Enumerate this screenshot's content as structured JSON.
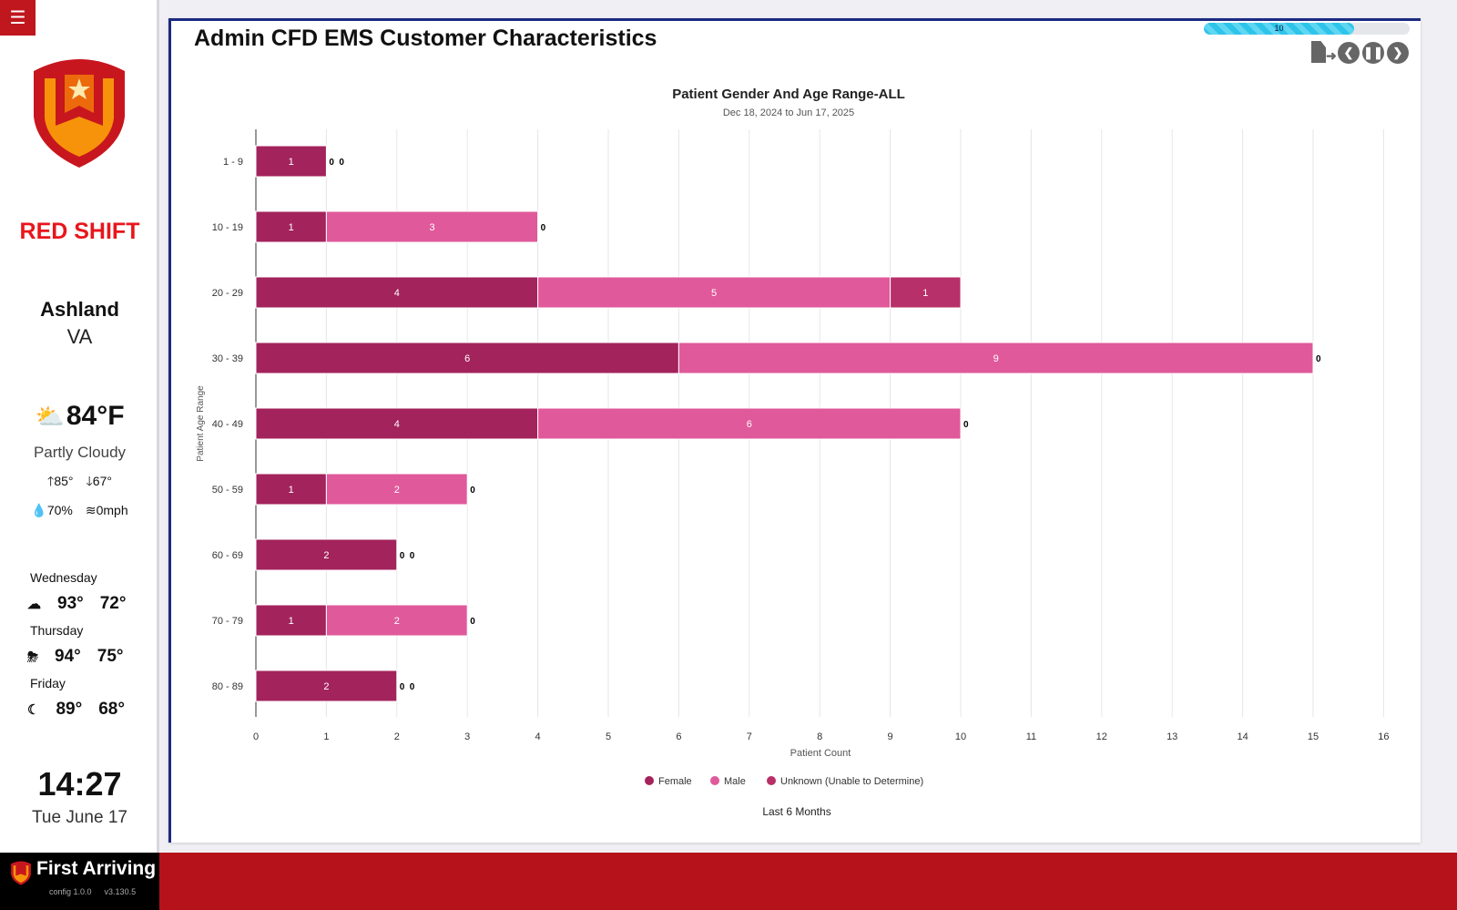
{
  "sidebar": {
    "shift": "RED SHIFT",
    "city": "Ashland",
    "state": "VA",
    "weather": {
      "temp": "84°F",
      "condition": "Partly Cloudy",
      "high": "85°",
      "low": "67°",
      "humidity": "70%",
      "wind": "0mph"
    },
    "forecast": [
      {
        "day": "Wednesday",
        "high": "93°",
        "low": "72°",
        "icon": "partly-cloudy-icon"
      },
      {
        "day": "Thursday",
        "high": "94°",
        "low": "75°",
        "icon": "thunderstorm-icon"
      },
      {
        "day": "Friday",
        "high": "89°",
        "low": "68°",
        "icon": "moon-icon"
      }
    ],
    "time": "14:27",
    "date": "Tue June 17"
  },
  "footer": {
    "brand": "First Arriving",
    "config": "config 1.0.0",
    "version": "v3.130.5"
  },
  "header": {
    "title": "Admin CFD EMS Customer Characteristics",
    "progress_label": "10",
    "progress_percent": 73
  },
  "colors": {
    "female": "#a3235c",
    "male": "#e0599b",
    "unknown": "#b83069",
    "brand_red": "#b5121b"
  },
  "chart_data": {
    "type": "bar",
    "orientation": "horizontal",
    "stacked": true,
    "title": "Patient Gender And Age Range-ALL",
    "subtitle": "Dec 18, 2024 to Jun 17, 2025",
    "xlabel": "Patient Count",
    "ylabel": "Patient Age Range",
    "xlim": [
      0,
      16
    ],
    "xticks": [
      "0",
      "1",
      "2",
      "3",
      "4",
      "5",
      "6",
      "7",
      "8",
      "9",
      "10",
      "11",
      "12",
      "13",
      "14",
      "15",
      "16"
    ],
    "categories": [
      "1 - 9",
      "10 - 19",
      "20 - 29",
      "30 - 39",
      "40 - 49",
      "50 - 59",
      "60 - 69",
      "70 - 79",
      "80 - 89"
    ],
    "series": [
      {
        "name": "Female",
        "values": [
          1,
          1,
          4,
          6,
          4,
          1,
          2,
          1,
          2
        ]
      },
      {
        "name": "Male",
        "values": [
          0,
          3,
          5,
          9,
          6,
          2,
          0,
          2,
          0
        ]
      },
      {
        "name": "Unknown (Unable to Determine)",
        "values": [
          0,
          0,
          1,
          0,
          0,
          0,
          0,
          0,
          0
        ]
      }
    ],
    "legend_position": "bottom",
    "footnote": "Last 6 Months"
  }
}
